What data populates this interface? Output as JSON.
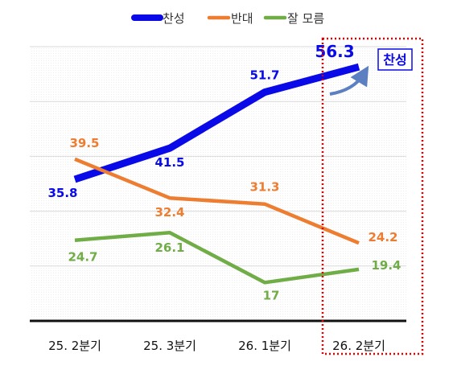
{
  "chart_data": {
    "type": "line",
    "categories": [
      "25. 2분기",
      "25. 3분기",
      "26. 1분기",
      "26. 2분기"
    ],
    "series": [
      {
        "name": "찬성",
        "values": [
          35.8,
          41.5,
          51.7,
          56.3
        ],
        "color": "#0a0ae8"
      },
      {
        "name": "반대",
        "values": [
          39.5,
          32.4,
          31.3,
          24.2
        ],
        "color": "#ed7d31"
      },
      {
        "name": "잘 모름",
        "values": [
          24.7,
          26.1,
          17,
          19.4
        ],
        "color": "#70ad47"
      }
    ],
    "legend_position": "top-center",
    "grid": true,
    "highlight": {
      "category": "26. 2분기",
      "label": "찬성",
      "color": "#e00000"
    }
  }
}
